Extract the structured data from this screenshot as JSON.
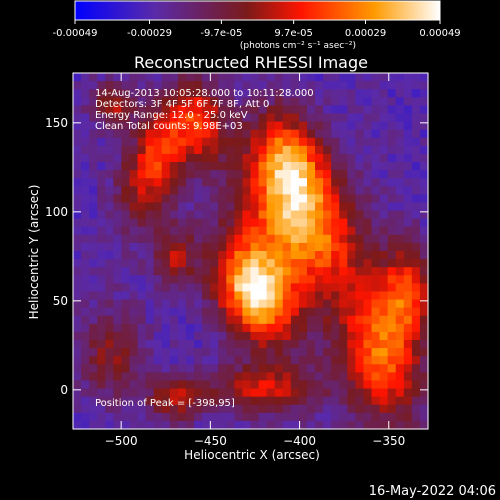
{
  "colorbar": {
    "tick_labels": [
      "-0.00049",
      "-0.00029",
      "-9.7e-05",
      "9.7e-05",
      "0.00029",
      "0.00049"
    ],
    "tick_values": [
      -0.00049,
      -0.00029,
      -9.7e-05,
      9.7e-05,
      0.00029,
      0.00049
    ],
    "range": [
      -0.00049,
      0.00049
    ],
    "units_label": "(photons cm⁻² s⁻¹ asec⁻²)",
    "colors": [
      "#0000ff",
      "#5a2aa8",
      "#7a1a1a",
      "#ff1400",
      "#ff9a00",
      "#ffffff"
    ]
  },
  "chart_data": {
    "type": "heatmap",
    "title": "Reconstructed RHESSI Image",
    "xlabel": "Heliocentric X (arcsec)",
    "ylabel": "Heliocentric Y (arcsec)",
    "xlim": [
      -527,
      -328
    ],
    "ylim": [
      -22,
      178
    ],
    "x_ticks": [
      -500,
      -450,
      -400,
      -350
    ],
    "y_ticks": [
      0,
      50,
      100,
      150
    ],
    "x_tick_labels": [
      "−500",
      "−450",
      "−400",
      "−350"
    ],
    "y_tick_labels": [
      "0",
      "50",
      "100",
      "150"
    ],
    "peak_position": [
      -398,
      95
    ],
    "grid": false
  },
  "info": {
    "time_range": "14-Aug-2013 10:05:28.000 to 10:11:28.000",
    "detectors": "Detectors: 3F 4F 5F 6F 7F 8F, Att 0",
    "energy": "Energy Range: 12.0 - 25.0 keV",
    "clean": "Clean     Total counts: 9.98E+03",
    "peak_text": "Position of Peak = [-398,95]"
  },
  "footer": {
    "timestamp": "16-May-2022 04:06"
  }
}
